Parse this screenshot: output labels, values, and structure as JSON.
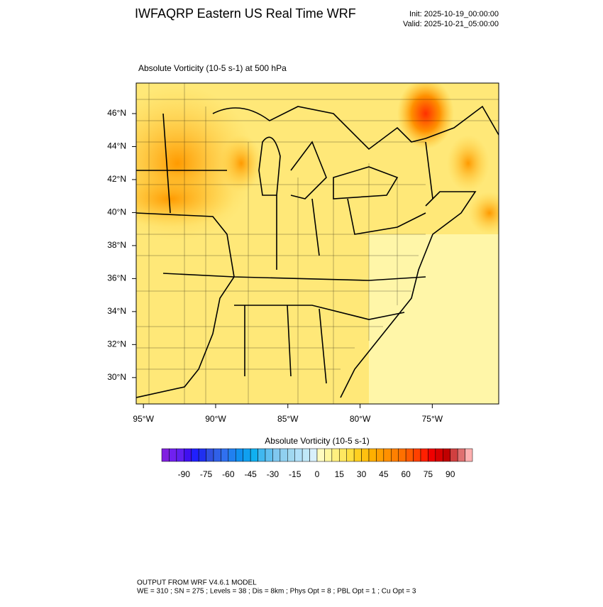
{
  "header": {
    "title": "IWFAQRP Eastern US Real Time WRF",
    "init": "Init: 2025-10-19_00:00:00",
    "valid": "Valid: 2025-10-21_05:00:00"
  },
  "map": {
    "subtitle": "Absolute Vorticity   (10-5 s-1)     at   500 hPa",
    "xlim": [
      -95.5,
      -70.4
    ],
    "ylim": [
      28.4,
      47.85
    ],
    "xticks": [
      {
        "value": -95,
        "label": "95°W"
      },
      {
        "value": -90,
        "label": "90°W"
      },
      {
        "value": -85,
        "label": "85°W"
      },
      {
        "value": -80,
        "label": "80°W"
      },
      {
        "value": -75,
        "label": "75°W"
      }
    ],
    "yticks": [
      {
        "value": 30,
        "label": "30°N"
      },
      {
        "value": 32,
        "label": "32°N"
      },
      {
        "value": 34,
        "label": "34°N"
      },
      {
        "value": 36,
        "label": "36°N"
      },
      {
        "value": 38,
        "label": "38°N"
      },
      {
        "value": 40,
        "label": "40°N"
      },
      {
        "value": 42,
        "label": "42°N"
      },
      {
        "value": 44,
        "label": "44°N"
      },
      {
        "value": 46,
        "label": "46°N"
      }
    ]
  },
  "colorbar": {
    "title": "Absolute Vorticity  (10-5 s-1)",
    "range": [
      -105,
      105
    ],
    "ticks": [
      -90,
      -75,
      -60,
      -45,
      -30,
      -15,
      0,
      15,
      30,
      45,
      60,
      75,
      90
    ],
    "colors": [
      "#8020e0",
      "#7020f0",
      "#6020f0",
      "#4010f0",
      "#2020ff",
      "#2030f0",
      "#3050e0",
      "#3060e8",
      "#3070f0",
      "#2080f0",
      "#1090f0",
      "#10a0f0",
      "#10b0f0",
      "#40b8f0",
      "#60c0f0",
      "#80c8f0",
      "#90d0f0",
      "#a0d8f0",
      "#b0e0f8",
      "#c0e8f8",
      "#d8f0fc",
      "#fffcc0",
      "#fff8a0",
      "#fff080",
      "#ffe860",
      "#ffe040",
      "#ffd020",
      "#ffc010",
      "#ffb000",
      "#ffa000",
      "#ff9000",
      "#ff8000",
      "#ff7000",
      "#ff5a00",
      "#ff4000",
      "#ff2000",
      "#f00000",
      "#d80000",
      "#c00000",
      "#d04040",
      "#e07070",
      "#ffb0b0"
    ]
  },
  "footer": {
    "line1": "OUTPUT FROM WRF V4.6.1 MODEL",
    "line2": "WE = 310 ; SN = 275 ; Levels = 38 ; Dis = 8km ; Phys Opt = 8 ; PBL Opt = 1 ; Cu Opt = 3"
  }
}
